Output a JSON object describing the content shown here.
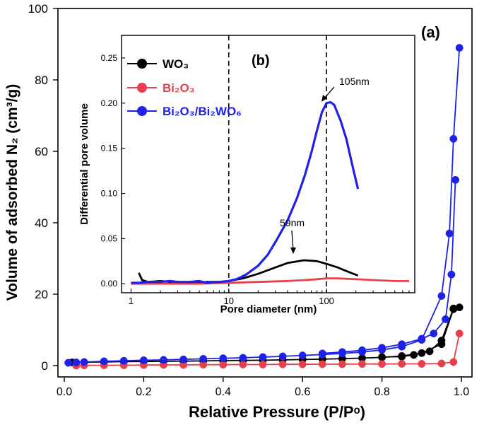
{
  "chart_data": [
    {
      "panel": "(a)",
      "type": "scatter",
      "xlabel": "Relative Pressure (P/Pᵒ)",
      "ylabel": "Volume of adsorbed N₂ (cm³/g)",
      "xlim": [
        0.0,
        1.0
      ],
      "ylim": [
        0,
        100
      ],
      "xticks": [
        "0.0",
        "0.2",
        "0.4",
        "0.6",
        "0.8",
        "1.0"
      ],
      "xtick_values": [
        0.0,
        0.2,
        0.4,
        0.6,
        0.8,
        1.0
      ],
      "yticks": [
        "0",
        "20",
        "40",
        "60",
        "80",
        "100"
      ],
      "ytick_values": [
        0,
        20,
        40,
        60,
        80,
        100
      ],
      "series": [
        {
          "name": "WO₃",
          "color": "#000000",
          "adsorption": [
            [
              0.02,
              0.9
            ],
            [
              0.05,
              0.95
            ],
            [
              0.1,
              1.0
            ],
            [
              0.15,
              1.1
            ],
            [
              0.2,
              1.15
            ],
            [
              0.25,
              1.2
            ],
            [
              0.3,
              1.25
            ],
            [
              0.35,
              1.3
            ],
            [
              0.4,
              1.4
            ],
            [
              0.45,
              1.45
            ],
            [
              0.5,
              1.5
            ],
            [
              0.55,
              1.6
            ],
            [
              0.6,
              1.7
            ],
            [
              0.65,
              1.8
            ],
            [
              0.7,
              1.95
            ],
            [
              0.75,
              2.1
            ],
            [
              0.8,
              2.3
            ],
            [
              0.85,
              2.7
            ],
            [
              0.9,
              3.5
            ],
            [
              0.95,
              6.0
            ],
            [
              0.98,
              15.8
            ],
            [
              0.995,
              16.3
            ]
          ],
          "desorption": [
            [
              0.98,
              16.0
            ],
            [
              0.95,
              7.0
            ],
            [
              0.92,
              4.0
            ],
            [
              0.88,
              3.0
            ],
            [
              0.85,
              2.5
            ],
            [
              0.8,
              2.4
            ]
          ]
        },
        {
          "name": "Bi₂O₃",
          "color": "#e8404a",
          "adsorption": [
            [
              0.03,
              0.0
            ],
            [
              0.05,
              0.05
            ],
            [
              0.1,
              0.1
            ],
            [
              0.15,
              0.1
            ],
            [
              0.2,
              0.15
            ],
            [
              0.25,
              0.2
            ],
            [
              0.3,
              0.2
            ],
            [
              0.35,
              0.25
            ],
            [
              0.4,
              0.25
            ],
            [
              0.45,
              0.3
            ],
            [
              0.5,
              0.3
            ],
            [
              0.55,
              0.35
            ],
            [
              0.6,
              0.35
            ],
            [
              0.65,
              0.4
            ],
            [
              0.7,
              0.4
            ],
            [
              0.75,
              0.45
            ],
            [
              0.8,
              0.45
            ],
            [
              0.85,
              0.5
            ],
            [
              0.9,
              0.5
            ],
            [
              0.95,
              0.6
            ],
            [
              0.98,
              1.0
            ],
            [
              0.995,
              9.0
            ]
          ],
          "desorption": []
        },
        {
          "name": "Bi₂O₃/Bi₂WO₆",
          "color": "#1e22e8",
          "adsorption": [
            [
              0.01,
              0.8
            ],
            [
              0.03,
              0.9
            ],
            [
              0.05,
              1.0
            ],
            [
              0.1,
              1.2
            ],
            [
              0.15,
              1.35
            ],
            [
              0.2,
              1.5
            ],
            [
              0.25,
              1.6
            ],
            [
              0.3,
              1.75
            ],
            [
              0.35,
              1.9
            ],
            [
              0.4,
              2.05
            ],
            [
              0.45,
              2.2
            ],
            [
              0.5,
              2.4
            ],
            [
              0.55,
              2.6
            ],
            [
              0.6,
              2.85
            ],
            [
              0.65,
              3.1
            ],
            [
              0.7,
              3.4
            ],
            [
              0.75,
              3.8
            ],
            [
              0.8,
              4.4
            ],
            [
              0.85,
              5.3
            ],
            [
              0.9,
              7.2
            ],
            [
              0.95,
              19.5
            ],
            [
              0.97,
              37.0
            ],
            [
              0.98,
              63.5
            ],
            [
              0.995,
              89.0
            ]
          ],
          "desorption": [
            [
              0.985,
              52.0
            ],
            [
              0.975,
              25.5
            ],
            [
              0.96,
              13.0
            ],
            [
              0.93,
              9.0
            ],
            [
              0.9,
              7.5
            ],
            [
              0.85,
              6.0
            ],
            [
              0.8,
              5.0
            ],
            [
              0.75,
              4.3
            ],
            [
              0.7,
              3.8
            ],
            [
              0.65,
              3.4
            ]
          ]
        }
      ],
      "annotations": [
        "(a)"
      ]
    },
    {
      "panel": "(b)",
      "type": "line",
      "xscale": "log",
      "xlabel": "Pore diameter (nm)",
      "ylabel": "Differential pore volume",
      "xlim": [
        0.8,
        800
      ],
      "ylim": [
        -0.01,
        0.275
      ],
      "xticks": [
        "1",
        "10",
        "100"
      ],
      "xtick_values": [
        1,
        10,
        100
      ],
      "yticks": [
        "0.00",
        "0.05",
        "0.10",
        "0.15",
        "0.20",
        "0.25"
      ],
      "ytick_values": [
        0.0,
        0.05,
        0.1,
        0.15,
        0.2,
        0.25
      ],
      "reference_lines_x": [
        10,
        100
      ],
      "legend_position": "top-left",
      "series": [
        {
          "name": "WO₃",
          "color": "#000000",
          "x": [
            1.2,
            1.3,
            1.5,
            2.0,
            2.5,
            3,
            4,
            5,
            6,
            8,
            10,
            14,
            20,
            30,
            40,
            59,
            80,
            100,
            130,
            160,
            210
          ],
          "values": [
            0.012,
            0.004,
            0.002,
            0.003,
            0.002,
            0.002,
            0.001,
            0.001,
            0.002,
            0.002,
            0.003,
            0.006,
            0.011,
            0.018,
            0.023,
            0.026,
            0.025,
            0.022,
            0.018,
            0.014,
            0.009
          ]
        },
        {
          "name": "Bi₂O₃",
          "color": "#e8404a",
          "x": [
            1.0,
            2.0,
            5.0,
            10,
            20,
            40,
            60,
            80,
            100,
            130,
            200,
            300,
            500,
            700
          ],
          "values": [
            0.0,
            0.0,
            0.0,
            0.001,
            0.002,
            0.003,
            0.004,
            0.005,
            0.006,
            0.006,
            0.005,
            0.004,
            0.003,
            0.003
          ]
        },
        {
          "name": "Bi₂O₃/Bi₂WO₆",
          "color": "#1e22e8",
          "x": [
            1.0,
            1.2,
            1.5,
            2.0,
            2.5,
            3,
            4,
            5,
            6,
            7,
            8,
            10,
            12,
            15,
            20,
            25,
            30,
            40,
            50,
            60,
            70,
            80,
            90,
            100,
            110,
            120,
            140,
            160,
            185,
            210
          ],
          "values": [
            0.001,
            0.001,
            0.002,
            0.002,
            0.003,
            0.002,
            0.002,
            0.003,
            0.001,
            0.002,
            0.002,
            0.003,
            0.005,
            0.01,
            0.02,
            0.032,
            0.046,
            0.07,
            0.095,
            0.12,
            0.145,
            0.17,
            0.19,
            0.2,
            0.201,
            0.198,
            0.18,
            0.16,
            0.13,
            0.105
          ]
        }
      ],
      "annotations": [
        {
          "label": "(b)"
        },
        {
          "label": "105nm",
          "x": 105,
          "y": 0.202
        },
        {
          "label": "59nm",
          "x": 59,
          "y": 0.026
        }
      ]
    }
  ]
}
